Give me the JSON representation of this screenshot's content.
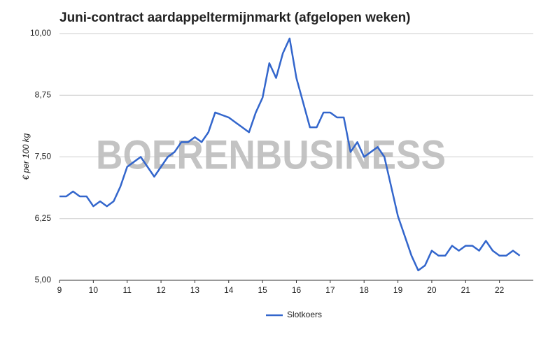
{
  "chart_data": {
    "type": "line",
    "title": "Juni-contract aardappeltermijnmarkt (afgelopen weken)",
    "y_label": "€ per 100 kg",
    "watermark": "BOERENBUSINESS",
    "x": [
      9,
      9.2,
      9.4,
      9.6,
      9.8,
      10,
      10.2,
      10.4,
      10.6,
      10.8,
      11,
      11.2,
      11.4,
      11.6,
      11.8,
      12,
      12.2,
      12.4,
      12.6,
      12.8,
      13,
      13.2,
      13.4,
      13.6,
      13.8,
      14,
      14.2,
      14.4,
      14.6,
      14.8,
      15,
      15.2,
      15.4,
      15.6,
      15.8,
      16,
      16.2,
      16.4,
      16.6,
      16.8,
      17,
      17.2,
      17.4,
      17.6,
      17.8,
      18,
      18.2,
      18.4,
      18.6,
      18.8,
      19,
      19.2,
      19.4,
      19.6,
      19.8,
      20,
      20.2,
      20.4,
      20.6,
      20.8,
      21,
      21.2,
      21.4,
      21.6,
      21.8,
      22,
      22.2,
      22.4,
      22.6
    ],
    "series": [
      {
        "name": "Slotkoers",
        "color": "#3366cc",
        "values": [
          6.7,
          6.7,
          6.8,
          6.7,
          6.7,
          6.5,
          6.6,
          6.5,
          6.6,
          6.9,
          7.3,
          7.4,
          7.5,
          7.3,
          7.1,
          7.3,
          7.5,
          7.6,
          7.8,
          7.8,
          7.9,
          7.8,
          8.0,
          8.4,
          8.35,
          8.3,
          8.2,
          8.1,
          8.0,
          8.4,
          8.7,
          9.4,
          9.1,
          9.6,
          9.9,
          9.1,
          8.6,
          8.1,
          8.1,
          8.4,
          8.4,
          8.3,
          8.3,
          7.6,
          7.8,
          7.5,
          7.6,
          7.7,
          7.5,
          6.9,
          6.3,
          5.9,
          5.5,
          5.2,
          5.3,
          5.6,
          5.5,
          5.5,
          5.7,
          5.6,
          5.7,
          5.7,
          5.6,
          5.8,
          5.6,
          5.5,
          5.5,
          5.6,
          5.5
        ]
      }
    ],
    "xlim": [
      9,
      23
    ],
    "xticks": [
      9,
      10,
      11,
      12,
      13,
      14,
      15,
      16,
      17,
      18,
      19,
      20,
      21,
      22
    ],
    "ylim": [
      5,
      10
    ],
    "yticks": [
      {
        "value": 5,
        "label": "5,00"
      },
      {
        "value": 6.25,
        "label": "6,25"
      },
      {
        "value": 7.5,
        "label": "7,50"
      },
      {
        "value": 8.75,
        "label": "8,75"
      },
      {
        "value": 10,
        "label": "10,00"
      }
    ],
    "grid": true,
    "legend": "bottom"
  }
}
